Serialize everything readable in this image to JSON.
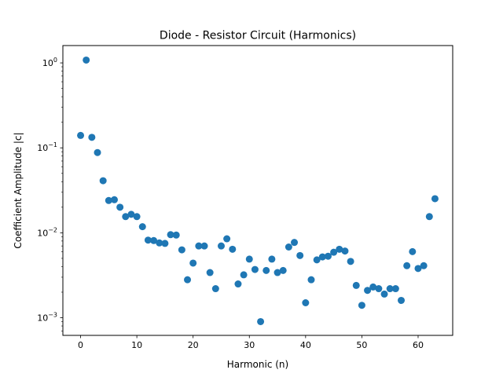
{
  "chart_data": {
    "type": "scatter",
    "title": "Diode - Resistor Circuit (Harmonics)",
    "xlabel": "Harmonic (n)",
    "ylabel": "Coefficient Amplitude |c|",
    "xscale": "linear",
    "yscale": "log",
    "xlim": [
      -3.15,
      66.15
    ],
    "ylim": [
      0.00062,
      1.6
    ],
    "grid": false,
    "marker_color": "#1f77b4",
    "x_ticks": [
      {
        "value": 0,
        "label": "0"
      },
      {
        "value": 10,
        "label": "10"
      },
      {
        "value": 20,
        "label": "20"
      },
      {
        "value": 30,
        "label": "30"
      },
      {
        "value": 40,
        "label": "40"
      },
      {
        "value": 50,
        "label": "50"
      },
      {
        "value": 60,
        "label": "60"
      }
    ],
    "y_ticks": [
      {
        "value": 0.001,
        "base": "10",
        "exp": "−3"
      },
      {
        "value": 0.01,
        "base": "10",
        "exp": "−2"
      },
      {
        "value": 0.1,
        "base": "10",
        "exp": "−1"
      },
      {
        "value": 1,
        "base": "10",
        "exp": "0"
      }
    ],
    "series": [
      {
        "name": "harmonics",
        "x": [
          0,
          1,
          2,
          3,
          4,
          5,
          6,
          7,
          8,
          9,
          10,
          11,
          12,
          13,
          14,
          15,
          16,
          17,
          18,
          19,
          20,
          21,
          22,
          23,
          24,
          25,
          26,
          27,
          28,
          29,
          30,
          31,
          32,
          33,
          34,
          35,
          36,
          37,
          38,
          39,
          40,
          41,
          42,
          43,
          44,
          45,
          46,
          47,
          48,
          49,
          50,
          51,
          52,
          53,
          54,
          55,
          56,
          57,
          58,
          59,
          60,
          61,
          62,
          63
        ],
        "y": [
          0.14,
          1.08,
          0.133,
          0.088,
          0.041,
          0.024,
          0.0245,
          0.02,
          0.0155,
          0.0165,
          0.0155,
          0.0118,
          0.0082,
          0.0081,
          0.0076,
          0.0075,
          0.0095,
          0.0094,
          0.0063,
          0.0028,
          0.0044,
          0.007,
          0.007,
          0.0034,
          0.0022,
          0.007,
          0.0085,
          0.0064,
          0.0025,
          0.0032,
          0.0049,
          0.0037,
          0.0009,
          0.0036,
          0.0049,
          0.0034,
          0.0036,
          0.0068,
          0.0077,
          0.0054,
          0.0015,
          0.0028,
          0.0048,
          0.0052,
          0.0053,
          0.0059,
          0.0064,
          0.0061,
          0.0046,
          0.0024,
          0.0014,
          0.0021,
          0.0023,
          0.0022,
          0.0019,
          0.0022,
          0.0022,
          0.0016,
          0.0041,
          0.006,
          0.0038,
          0.0041,
          0.0155,
          0.0252
        ]
      }
    ]
  }
}
